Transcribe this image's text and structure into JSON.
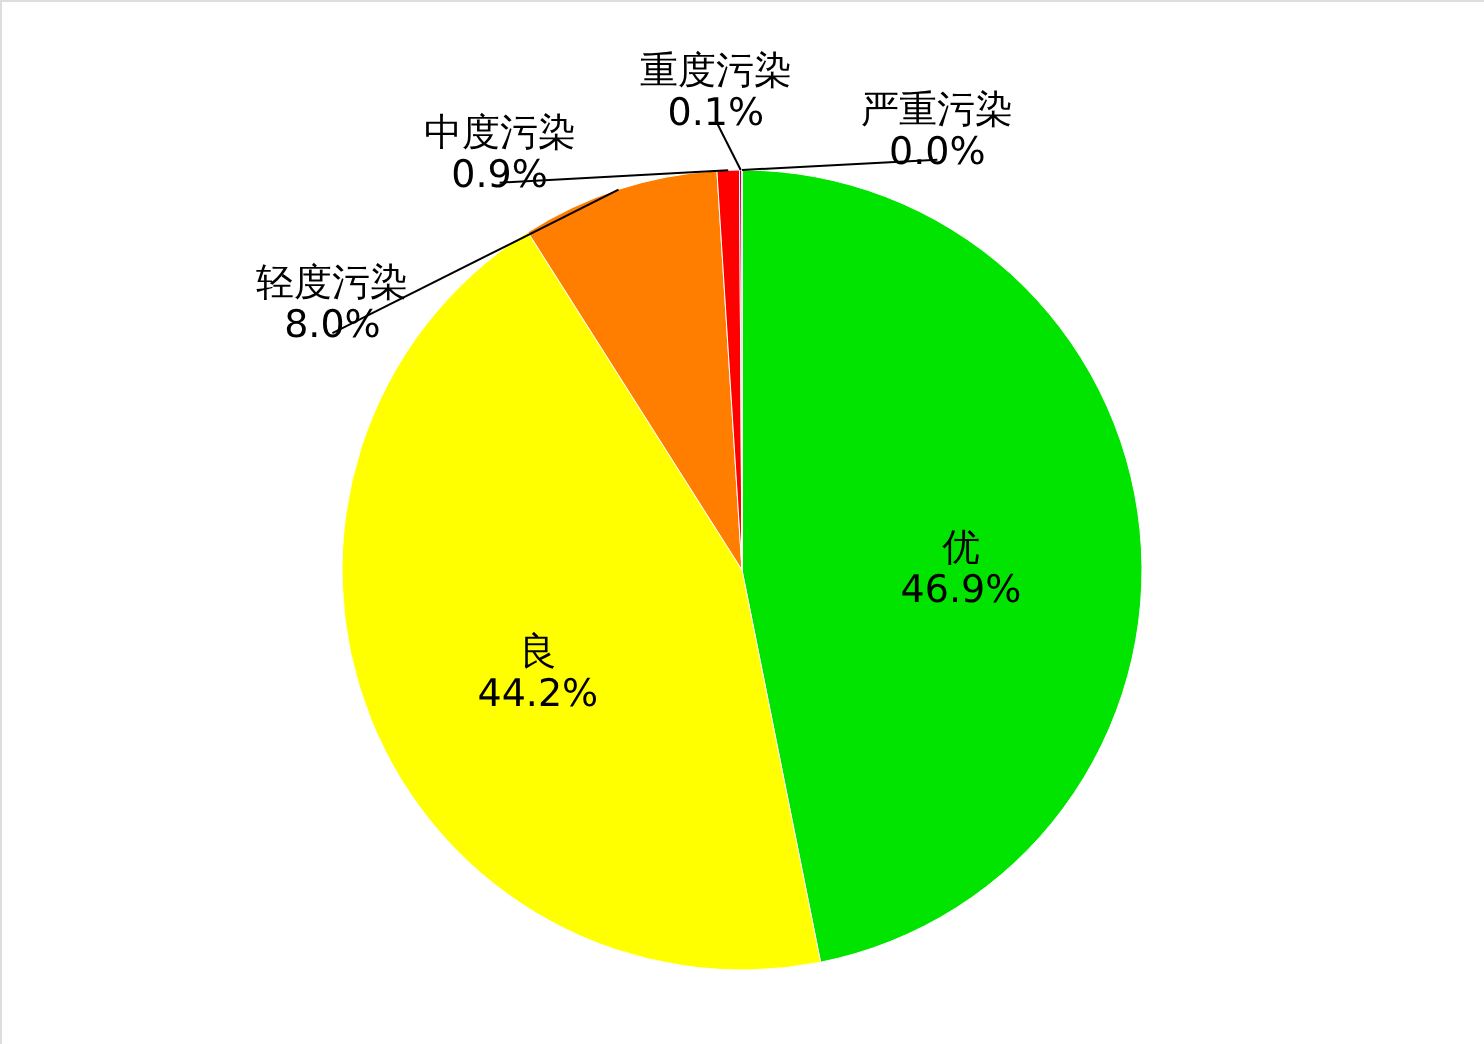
{
  "chart_data": {
    "type": "pie",
    "categories": [
      "优",
      "良",
      "轻度污染",
      "中度污染",
      "重度污染",
      "严重污染"
    ],
    "values": [
      46.9,
      44.2,
      8.0,
      0.9,
      0.1,
      0.0
    ],
    "colors": [
      "#00e400",
      "#ffff00",
      "#ff7e00",
      "#ff0000",
      "#99004c",
      "#7e0023"
    ],
    "value_labels": [
      "46.9%",
      "44.2%",
      "8.0%",
      "0.9%",
      "0.1%",
      "0.0%"
    ]
  }
}
